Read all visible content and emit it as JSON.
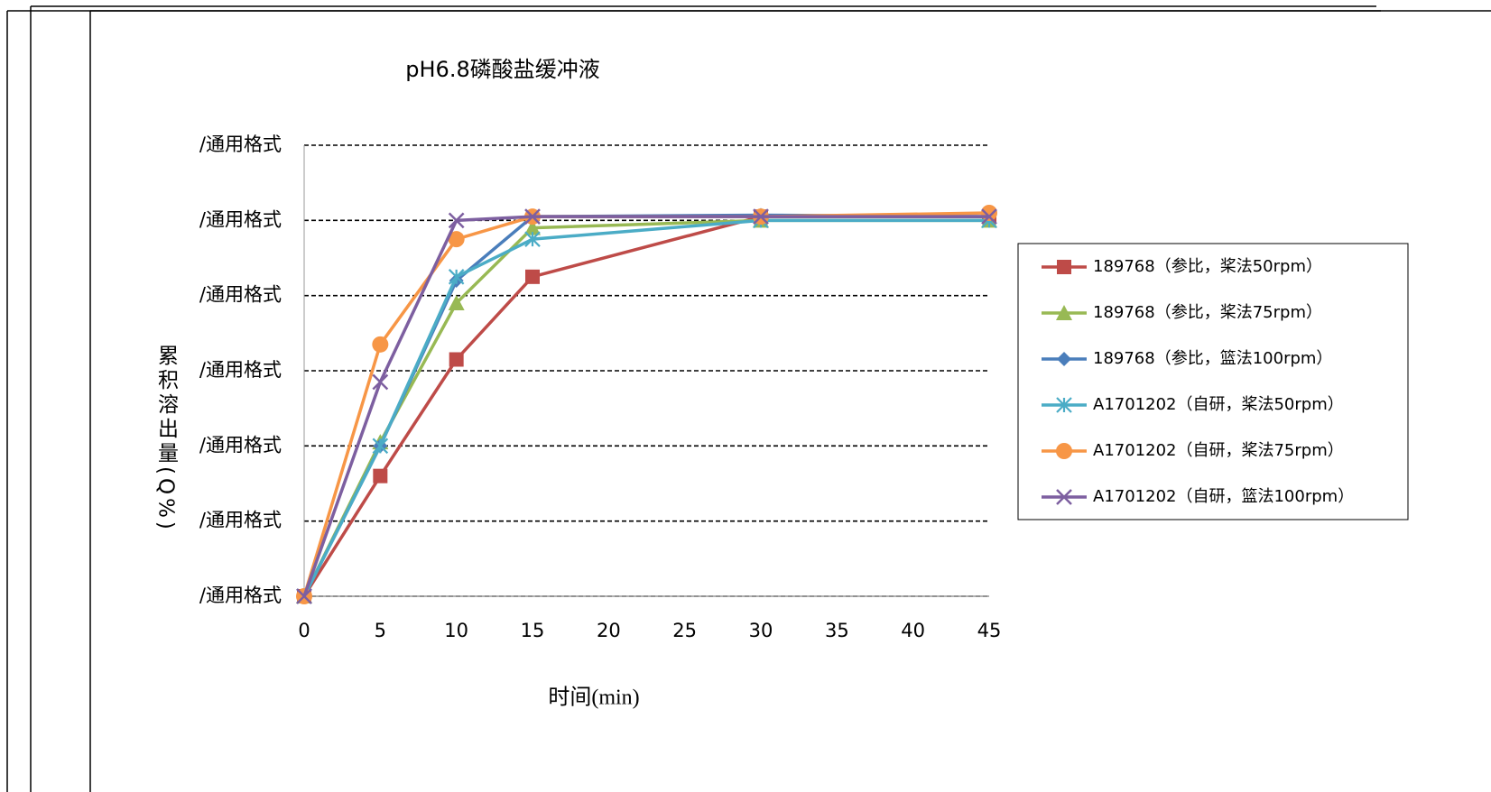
{
  "chart_data": {
    "type": "line",
    "title": "pH6.8磷酸盐缓冲液",
    "x_label": "时间(min)",
    "y_label": "累积溶出量(Q%)",
    "x": [
      0,
      5,
      10,
      15,
      30,
      45
    ],
    "xlim": [
      0,
      45
    ],
    "xticks": [
      0,
      5,
      10,
      15,
      20,
      25,
      30,
      35,
      40,
      45
    ],
    "ylim": [
      0,
      120
    ],
    "yticks": [
      {
        "value": 0,
        "label": "/通用格式"
      },
      {
        "value": 20,
        "label": "/通用格式"
      },
      {
        "value": 40,
        "label": "/通用格式"
      },
      {
        "value": 60,
        "label": "/通用格式"
      },
      {
        "value": 80,
        "label": "/通用格式"
      },
      {
        "value": 100,
        "label": "/通用格式"
      },
      {
        "value": 120,
        "label": "/通用格式"
      }
    ],
    "grid": true,
    "legend": "right",
    "series": [
      {
        "name": "189768（参比，桨法50rpm）",
        "color": "#be4b48",
        "marker": "square",
        "values": [
          0,
          32,
          63,
          85,
          101,
          101
        ]
      },
      {
        "name": "189768（参比，桨法75rpm）",
        "color": "#98b954",
        "marker": "triangle",
        "values": [
          0,
          41,
          78,
          98,
          100,
          100
        ]
      },
      {
        "name": "189768（参比，篮法100rpm）",
        "color": "#4a7ebb",
        "marker": "diamond",
        "values": [
          0,
          40,
          84,
          101,
          101.4,
          101
        ]
      },
      {
        "name": "A1701202（自研，桨法50rpm）",
        "color": "#4bacc6",
        "marker": "asterisk",
        "values": [
          0,
          40,
          85,
          95,
          100,
          100
        ]
      },
      {
        "name": "A1701202（自研，桨法75rpm）",
        "color": "#f79646",
        "marker": "circle",
        "values": [
          0,
          67,
          95,
          101,
          101,
          102
        ]
      },
      {
        "name": "A1701202（自研，篮法100rpm）",
        "color": "#7d5fa0",
        "marker": "x",
        "values": [
          0,
          57,
          100,
          101,
          101,
          101
        ]
      }
    ]
  }
}
